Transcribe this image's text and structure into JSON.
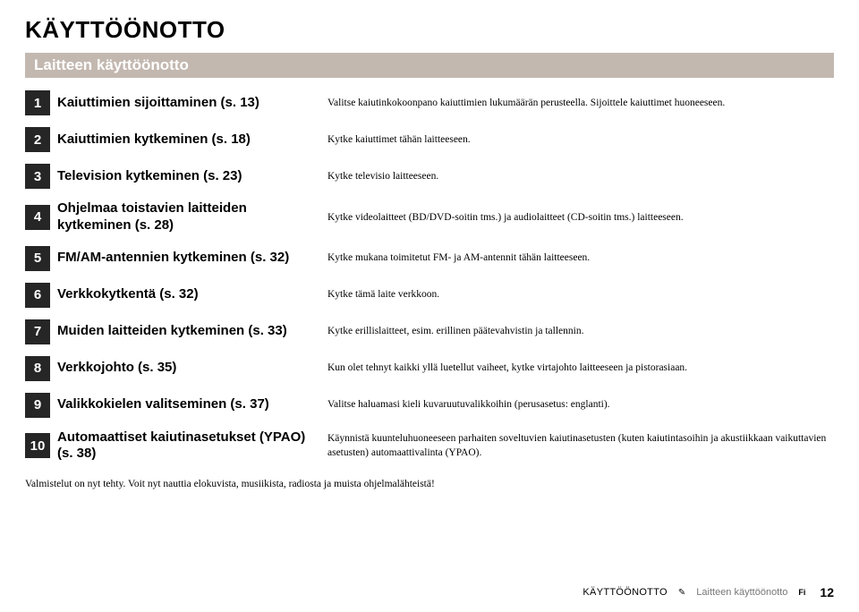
{
  "styles": {
    "page_bg": "#ffffff",
    "title_color": "#000000",
    "bar_bg": "#c3b8b0",
    "bar_fg": "#ffffff",
    "numbox_bg": "#262626",
    "numbox_fg": "#ffffff",
    "desc_font": "serif",
    "label_fontsize_pt": 11,
    "desc_fontsize_pt": 9
  },
  "title": "KÄYTTÖÖNOTTO",
  "section": "Laitteen käyttöönotto",
  "steps": [
    {
      "n": "1",
      "label": "Kaiuttimien sijoittaminen (s. 13)",
      "desc": "Valitse kaiutinkokoonpano kaiuttimien lukumäärän perusteella. Sijoittele kaiuttimet huoneeseen."
    },
    {
      "n": "2",
      "label": "Kaiuttimien kytkeminen (s. 18)",
      "desc": "Kytke kaiuttimet tähän laitteeseen."
    },
    {
      "n": "3",
      "label": "Television kytkeminen (s. 23)",
      "desc": "Kytke televisio laitteeseen."
    },
    {
      "n": "4",
      "label": "Ohjelmaa toistavien laitteiden kytkeminen (s. 28)",
      "desc": "Kytke videolaitteet (BD/DVD-soitin tms.) ja audiolaitteet (CD-soitin tms.) laitteeseen."
    },
    {
      "n": "5",
      "label": "FM/AM-antennien kytkeminen (s. 32)",
      "desc": "Kytke mukana toimitetut FM- ja AM-antennit tähän laitteeseen."
    },
    {
      "n": "6",
      "label": "Verkkokytkentä (s. 32)",
      "desc": "Kytke tämä laite verkkoon."
    },
    {
      "n": "7",
      "label": "Muiden laitteiden kytkeminen (s. 33)",
      "desc": "Kytke erillislaitteet, esim. erillinen päätevahvistin ja tallennin."
    },
    {
      "n": "8",
      "label": "Verkkojohto (s. 35)",
      "desc": "Kun olet tehnyt kaikki yllä luetellut vaiheet, kytke virtajohto laitteeseen ja pistorasiaan."
    },
    {
      "n": "9",
      "label": "Valikkokielen valitseminen (s. 37)",
      "desc": "Valitse haluamasi kieli kuvaruutuvalikkoihin (perusasetus: englanti)."
    },
    {
      "n": "10",
      "label": "Automaattiset kaiutinasetukset (YPAO) (s. 38)",
      "desc": "Käynnistä kuunteluhuoneeseen parhaiten soveltuvien kaiutinasetusten (kuten kaiutintasoihin ja akustiikkaan vaikuttavien asetusten) automaattivalinta (YPAO)."
    }
  ],
  "after": "Valmistelut on nyt tehty. Voit nyt nauttia elokuvista, musiikista, radiosta ja muista ohjelmalähteistä!",
  "footer": {
    "crumb1": "KÄYTTÖÖNOTTO",
    "crumb2": "Laitteen käyttöönotto",
    "lang": "Fi",
    "page": "12"
  }
}
